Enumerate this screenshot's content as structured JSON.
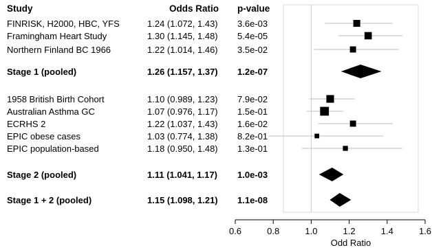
{
  "chart_data": {
    "type": "forest",
    "columns": [
      "Study",
      "Odds Ratio",
      "p-value"
    ],
    "xlabel": "Odd Ratio",
    "xlim": [
      0.6,
      1.6
    ],
    "xticks": [
      0.6,
      0.8,
      1.0,
      1.2,
      1.4,
      1.6
    ],
    "xtick_labels": [
      "0.6",
      "0.8",
      "1.0",
      "1.2",
      "1.4",
      "1.6"
    ],
    "reference_line": 1.0,
    "rows": [
      {
        "study": "FINRISK, H2000, HBC, YFS",
        "or_text": "1.24 (1.072, 1.43)",
        "p": "3.6e-03",
        "or": 1.24,
        "lo": 1.072,
        "hi": 1.43,
        "kind": "study",
        "weight": 0.55
      },
      {
        "study": "Framingham Heart Study",
        "or_text": "1.30 (1.145, 1.48)",
        "p": "5.4e-05",
        "or": 1.3,
        "lo": 1.145,
        "hi": 1.48,
        "kind": "study",
        "weight": 0.6
      },
      {
        "study": "Northern Finland BC 1966",
        "or_text": "1.22 (1.014, 1.46)",
        "p": "3.5e-02",
        "or": 1.22,
        "lo": 1.014,
        "hi": 1.46,
        "kind": "study",
        "weight": 0.45
      },
      {
        "study": "Stage 1 (pooled)",
        "or_text": "1.26 (1.157, 1.37)",
        "p": "1.2e-07",
        "or": 1.26,
        "lo": 1.157,
        "hi": 1.37,
        "kind": "pooled"
      },
      {
        "study": "1958 British Birth Cohort",
        "or_text": "1.10 (0.989, 1.23)",
        "p": "7.9e-02",
        "or": 1.1,
        "lo": 0.989,
        "hi": 1.23,
        "kind": "study",
        "weight": 0.65
      },
      {
        "study": "Australian Asthma GC",
        "or_text": "1.07 (0.976, 1.17)",
        "p": "1.5e-01",
        "or": 1.07,
        "lo": 0.976,
        "hi": 1.17,
        "kind": "study",
        "weight": 0.8
      },
      {
        "study": "ECRHS 2",
        "or_text": "1.22 (1.037, 1.43)",
        "p": "1.6e-02",
        "or": 1.22,
        "lo": 1.037,
        "hi": 1.43,
        "kind": "study",
        "weight": 0.45
      },
      {
        "study": "EPIC obese cases",
        "or_text": "1.03 (0.774, 1.38)",
        "p": "8.2e-01",
        "or": 1.03,
        "lo": 0.774,
        "hi": 1.38,
        "kind": "study",
        "weight": 0.25
      },
      {
        "study": "EPIC population-based",
        "or_text": "1.18 (0.950, 1.48)",
        "p": "1.3e-01",
        "or": 1.18,
        "lo": 0.95,
        "hi": 1.48,
        "kind": "study",
        "weight": 0.3
      },
      {
        "study": "Stage 2 (pooled)",
        "or_text": "1.11 (1.041, 1.17)",
        "p": "1.0e-03",
        "or": 1.11,
        "lo": 1.041,
        "hi": 1.17,
        "kind": "pooled"
      },
      {
        "study": "Stage 1 + 2 (pooled)",
        "or_text": "1.15 (1.098, 1.21)",
        "p": "1.1e-08",
        "or": 1.15,
        "lo": 1.098,
        "hi": 1.21,
        "kind": "pooled"
      }
    ],
    "colors": {
      "text": "#000000",
      "ci_line": "#bfbfbf",
      "frame": "#d9d9d9",
      "ref_line": "#cccccc",
      "axis": "#000000",
      "marker": "#000000"
    }
  }
}
